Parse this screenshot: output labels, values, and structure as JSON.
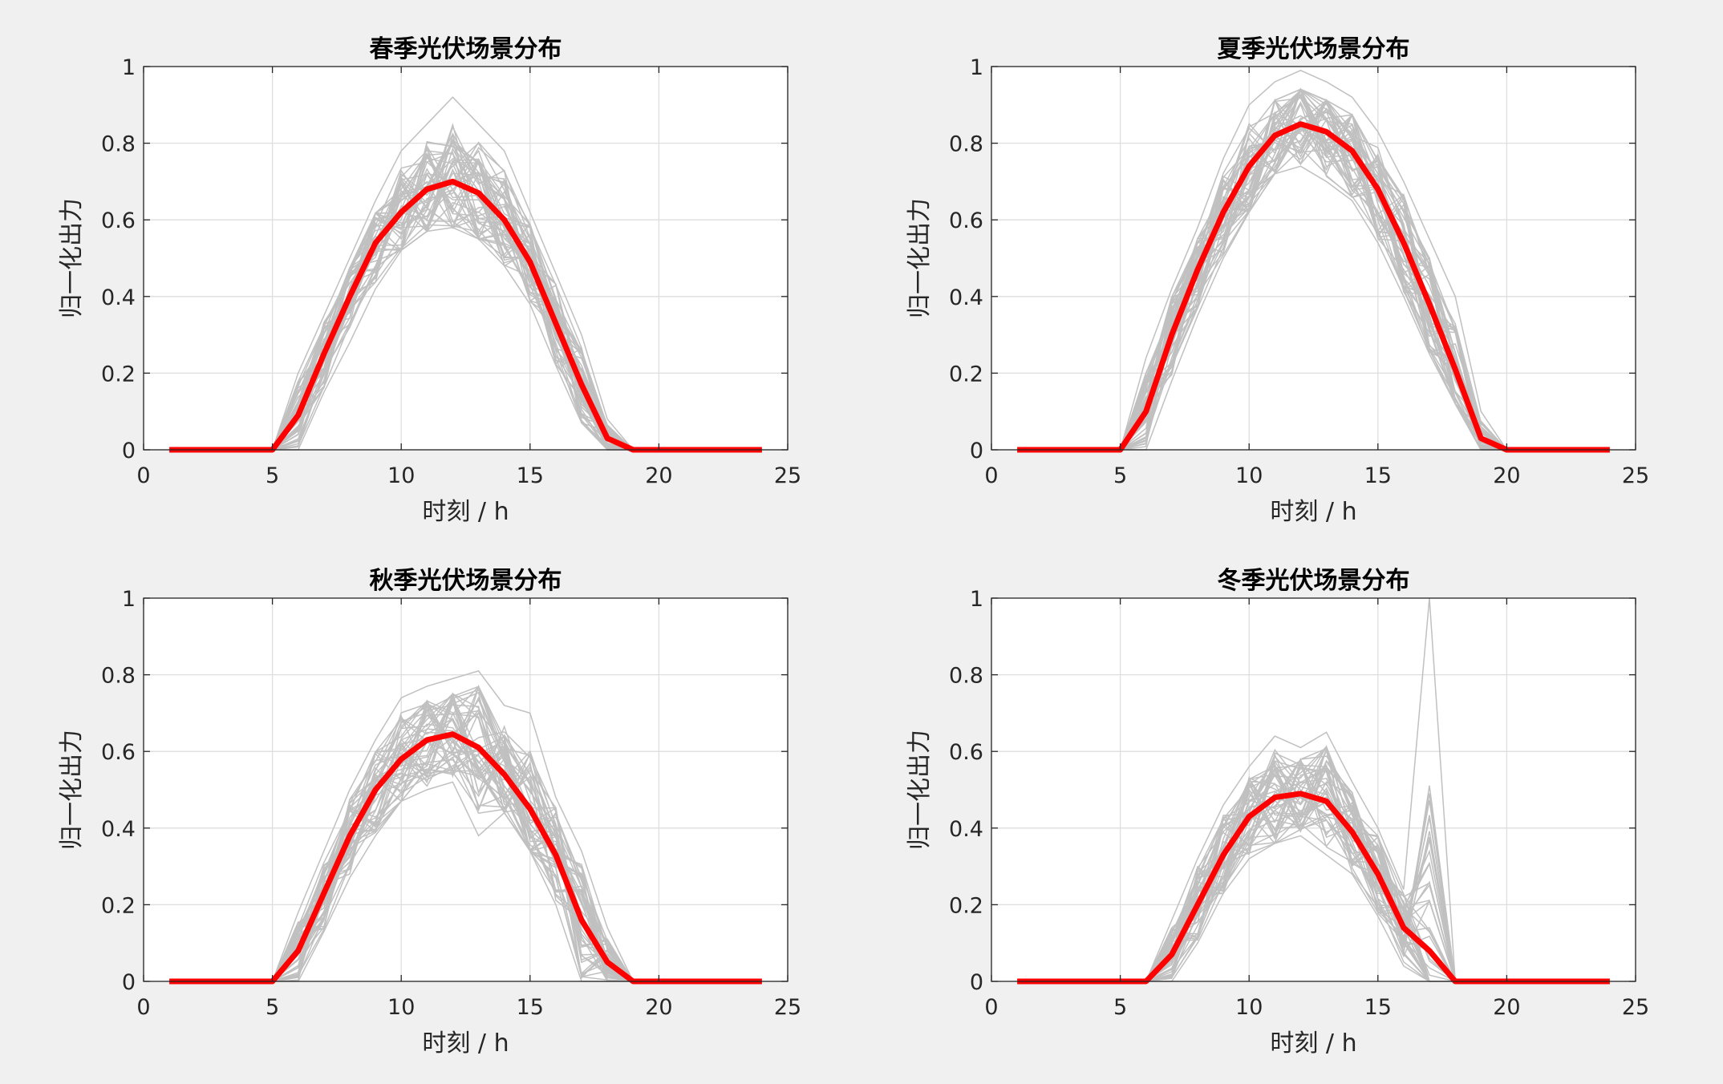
{
  "figure": {
    "background": "#f0f0f0"
  },
  "chart_data": [
    {
      "type": "line",
      "title": "春季光伏场景分布",
      "xlabel": "时刻 / h",
      "ylabel": "归一化出力",
      "xlim": [
        0,
        25
      ],
      "ylim": [
        0,
        1
      ],
      "xticks": [
        0,
        5,
        10,
        15,
        20,
        25
      ],
      "yticks": [
        0,
        0.2,
        0.4,
        0.6,
        0.8,
        1
      ],
      "ytick_labels": [
        "0",
        "0.2",
        "0.4",
        "0.6",
        "0.8",
        "1"
      ],
      "grid": true,
      "scenario_color": "#c0c0c0",
      "mean_color": "#ff0000",
      "x": [
        1,
        2,
        3,
        4,
        5,
        6,
        7,
        8,
        9,
        10,
        11,
        12,
        13,
        14,
        15,
        16,
        17,
        18,
        19,
        20,
        21,
        22,
        23,
        24
      ],
      "mean": [
        0,
        0,
        0,
        0,
        0,
        0.09,
        0.25,
        0.4,
        0.54,
        0.62,
        0.68,
        0.7,
        0.67,
        0.6,
        0.49,
        0.33,
        0.17,
        0.03,
        0,
        0,
        0,
        0,
        0,
        0
      ],
      "scenario_count": 50,
      "scenario_max": [
        0,
        0,
        0,
        0,
        0,
        0.2,
        0.35,
        0.5,
        0.65,
        0.78,
        0.85,
        0.92,
        0.85,
        0.78,
        0.62,
        0.46,
        0.3,
        0.08,
        0,
        0,
        0,
        0,
        0,
        0
      ],
      "scenario_min": [
        0,
        0,
        0,
        0,
        0,
        0,
        0.15,
        0.28,
        0.42,
        0.52,
        0.57,
        0.58,
        0.55,
        0.48,
        0.38,
        0.22,
        0.07,
        0,
        0,
        0,
        0,
        0,
        0,
        0
      ]
    },
    {
      "type": "line",
      "title": "夏季光伏场景分布",
      "xlabel": "时刻 / h",
      "ylabel": "归一化出力",
      "xlim": [
        0,
        25
      ],
      "ylim": [
        0,
        1
      ],
      "xticks": [
        0,
        5,
        10,
        15,
        20,
        25
      ],
      "yticks": [
        0,
        0.2,
        0.4,
        0.6,
        0.8,
        1
      ],
      "ytick_labels": [
        "0",
        "0.2",
        "0.4",
        "0.6",
        "0.8",
        "1"
      ],
      "grid": true,
      "scenario_color": "#c0c0c0",
      "mean_color": "#ff0000",
      "x": [
        1,
        2,
        3,
        4,
        5,
        6,
        7,
        8,
        9,
        10,
        11,
        12,
        13,
        14,
        15,
        16,
        17,
        18,
        19,
        20,
        21,
        22,
        23,
        24
      ],
      "mean": [
        0,
        0,
        0,
        0,
        0,
        0.1,
        0.3,
        0.47,
        0.62,
        0.74,
        0.82,
        0.85,
        0.83,
        0.78,
        0.68,
        0.54,
        0.38,
        0.21,
        0.03,
        0,
        0,
        0,
        0,
        0
      ],
      "scenario_count": 50,
      "scenario_max": [
        0,
        0,
        0,
        0,
        0,
        0.24,
        0.42,
        0.58,
        0.76,
        0.9,
        0.96,
        0.99,
        0.96,
        0.92,
        0.83,
        0.7,
        0.55,
        0.4,
        0.1,
        0,
        0,
        0,
        0,
        0
      ],
      "scenario_min": [
        0,
        0,
        0,
        0,
        0,
        0,
        0.18,
        0.35,
        0.5,
        0.62,
        0.72,
        0.74,
        0.7,
        0.65,
        0.54,
        0.4,
        0.25,
        0.12,
        0,
        0,
        0,
        0,
        0,
        0
      ]
    },
    {
      "type": "line",
      "title": "秋季光伏场景分布",
      "xlabel": "时刻 / h",
      "ylabel": "归一化出力",
      "xlim": [
        0,
        25
      ],
      "ylim": [
        0,
        1
      ],
      "xticks": [
        0,
        5,
        10,
        15,
        20,
        25
      ],
      "yticks": [
        0,
        0.2,
        0.4,
        0.6,
        0.8,
        1
      ],
      "ytick_labels": [
        "0",
        "0.2",
        "0.4",
        "0.6",
        "0.8",
        "1"
      ],
      "grid": true,
      "scenario_color": "#c0c0c0",
      "mean_color": "#ff0000",
      "x": [
        1,
        2,
        3,
        4,
        5,
        6,
        7,
        8,
        9,
        10,
        11,
        12,
        13,
        14,
        15,
        16,
        17,
        18,
        19,
        20,
        21,
        22,
        23,
        24
      ],
      "mean": [
        0,
        0,
        0,
        0,
        0,
        0.08,
        0.23,
        0.38,
        0.5,
        0.58,
        0.63,
        0.645,
        0.61,
        0.54,
        0.45,
        0.33,
        0.16,
        0.05,
        0,
        0,
        0,
        0,
        0,
        0
      ],
      "scenario_count": 50,
      "scenario_max": [
        0,
        0,
        0,
        0,
        0,
        0.18,
        0.34,
        0.5,
        0.63,
        0.74,
        0.77,
        0.79,
        0.81,
        0.72,
        0.7,
        0.48,
        0.34,
        0.14,
        0,
        0,
        0,
        0,
        0,
        0
      ],
      "scenario_min": [
        0,
        0,
        0,
        0,
        0,
        0,
        0.13,
        0.27,
        0.38,
        0.47,
        0.5,
        0.52,
        0.38,
        0.44,
        0.34,
        0.2,
        0,
        0,
        0,
        0,
        0,
        0,
        0,
        0
      ]
    },
    {
      "type": "line",
      "title": "冬季光伏场景分布",
      "xlabel": "时刻 / h",
      "ylabel": "归一化出力",
      "xlim": [
        0,
        25
      ],
      "ylim": [
        0,
        1
      ],
      "xticks": [
        0,
        5,
        10,
        15,
        20,
        25
      ],
      "yticks": [
        0,
        0.2,
        0.4,
        0.6,
        0.8,
        1
      ],
      "ytick_labels": [
        "0",
        "0.2",
        "0.4",
        "0.6",
        "0.8",
        "1"
      ],
      "grid": true,
      "scenario_color": "#c0c0c0",
      "mean_color": "#ff0000",
      "x": [
        1,
        2,
        3,
        4,
        5,
        6,
        7,
        8,
        9,
        10,
        11,
        12,
        13,
        14,
        15,
        16,
        17,
        18,
        19,
        20,
        21,
        22,
        23,
        24
      ],
      "mean": [
        0,
        0,
        0,
        0,
        0,
        0,
        0.07,
        0.2,
        0.33,
        0.43,
        0.48,
        0.49,
        0.47,
        0.39,
        0.28,
        0.14,
        0.08,
        0,
        0,
        0,
        0,
        0,
        0,
        0
      ],
      "scenario_count": 50,
      "scenario_max": [
        0,
        0,
        0,
        0,
        0,
        0,
        0.16,
        0.32,
        0.46,
        0.56,
        0.64,
        0.61,
        0.65,
        0.52,
        0.4,
        0.24,
        1.0,
        0,
        0,
        0,
        0,
        0,
        0,
        0
      ],
      "scenario_min": [
        0,
        0,
        0,
        0,
        0,
        0,
        0,
        0.1,
        0.23,
        0.32,
        0.36,
        0.38,
        0.33,
        0.28,
        0.17,
        0.04,
        0,
        0,
        0,
        0,
        0,
        0,
        0,
        0
      ]
    }
  ]
}
